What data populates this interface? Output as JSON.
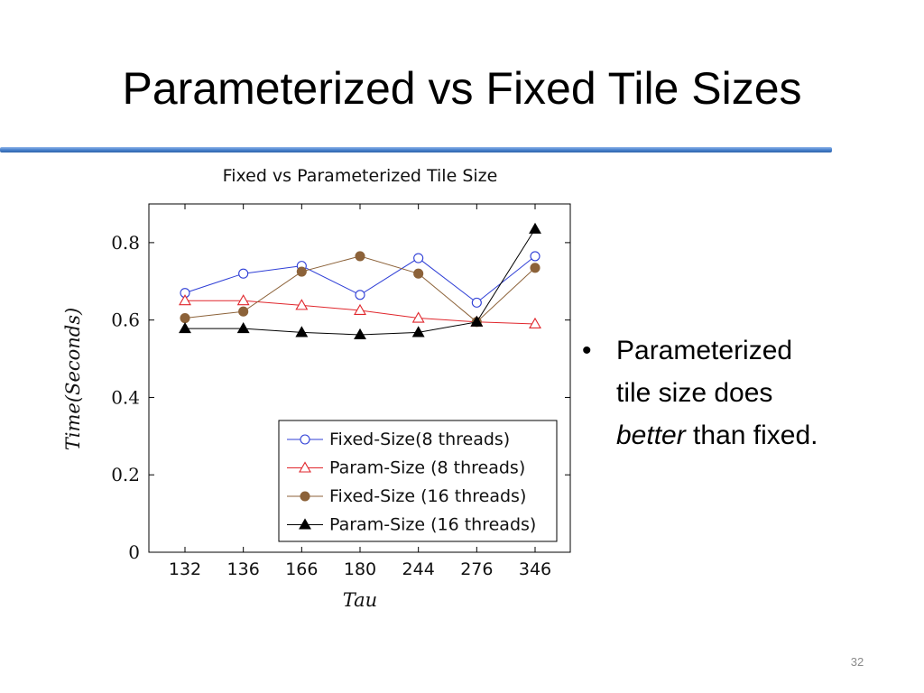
{
  "slide": {
    "title": "Parameterized vs Fixed Tile Sizes",
    "accent_color": "#4a83cf",
    "page_number": "32"
  },
  "bullet": {
    "line1": "Parameterized",
    "line2": "tile size does",
    "line3_emphasis": "better",
    "line3_rest": " than fixed."
  },
  "chart_data": {
    "type": "line",
    "title": "Fixed vs Parameterized Tile Size",
    "xlabel": "Tau",
    "ylabel": "Time(Seconds)",
    "categories": [
      "132",
      "136",
      "166",
      "180",
      "244",
      "276",
      "346"
    ],
    "ylim": [
      0,
      0.9
    ],
    "yticks": [
      0,
      0.2,
      0.4,
      0.6,
      0.8
    ],
    "ytick_labels": [
      "0",
      "0.2",
      "0.4",
      "0.6",
      "0.8"
    ],
    "grid": false,
    "legend_position": "bottom-right",
    "series": [
      {
        "name": "Fixed-Size(8 threads)",
        "color": "#2f3fd6",
        "marker": "circle-open",
        "values": [
          0.67,
          0.72,
          0.74,
          0.665,
          0.76,
          0.645,
          0.765
        ]
      },
      {
        "name": "Param-Size (8 threads)",
        "color": "#e0262c",
        "marker": "triangle-open",
        "values": [
          0.65,
          0.65,
          0.638,
          0.625,
          0.605,
          0.595,
          0.59
        ]
      },
      {
        "name": "Fixed-Size (16 threads)",
        "color": "#8c6239",
        "marker": "circle-filled",
        "values": [
          0.605,
          0.622,
          0.725,
          0.765,
          0.72,
          0.595,
          0.735
        ]
      },
      {
        "name": "Param-Size (16 threads)",
        "color": "#000000",
        "marker": "triangle-filled",
        "values": [
          0.578,
          0.578,
          0.568,
          0.562,
          0.568,
          0.595,
          0.835
        ]
      }
    ]
  }
}
